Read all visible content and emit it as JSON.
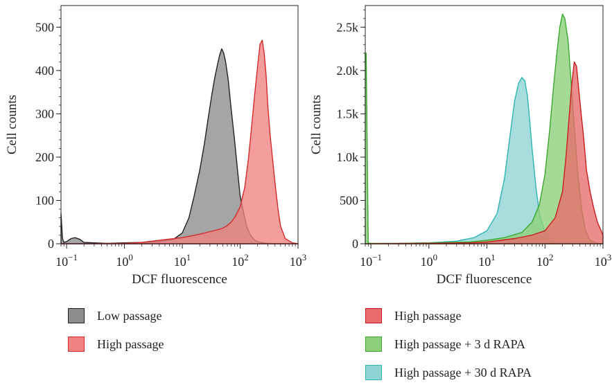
{
  "chart_data": [
    {
      "type": "area",
      "xlabel": "DCF fluorescence",
      "ylabel": "Cell counts",
      "x_scale": "log",
      "xlim": [
        0.08,
        1000
      ],
      "ylim": [
        0,
        550
      ],
      "yticks": [
        0,
        100,
        200,
        300,
        400,
        500
      ],
      "ytick_labels": [
        "0",
        "100",
        "200",
        "300",
        "400",
        "500"
      ],
      "xticks": [
        0.1,
        1,
        10,
        100,
        1000
      ],
      "xtick_labels": [
        {
          "base": "10",
          "exp": "−1"
        },
        {
          "base": "10",
          "exp": "0"
        },
        {
          "base": "10",
          "exp": "1"
        },
        {
          "base": "10",
          "exp": "2"
        },
        {
          "base": "10",
          "exp": "3"
        }
      ],
      "series": [
        {
          "name": "Low passage",
          "fill": "#8c8c8c",
          "stroke": "#222222",
          "x": [
            0.08,
            0.085,
            0.09,
            0.1,
            0.12,
            0.14,
            0.17,
            0.2,
            0.3,
            0.5,
            1,
            2,
            4,
            7,
            10,
            13,
            16,
            20,
            24,
            28,
            32,
            36,
            40,
            44,
            48,
            52,
            56,
            62,
            70,
            80,
            90,
            100,
            115,
            130,
            150,
            180,
            220,
            300,
            400,
            600,
            1000
          ],
          "y": [
            70,
            12,
            3,
            5,
            12,
            14,
            10,
            3,
            2,
            1,
            2,
            3,
            5,
            10,
            25,
            60,
            110,
            170,
            230,
            290,
            340,
            380,
            410,
            435,
            450,
            440,
            420,
            380,
            310,
            240,
            170,
            110,
            70,
            40,
            20,
            8,
            3,
            1,
            0,
            0,
            0
          ]
        },
        {
          "name": "High passage",
          "fill": "#f08282",
          "stroke": "#d42a2a",
          "x": [
            0.08,
            0.3,
            1,
            2,
            4,
            10,
            20,
            30,
            40,
            50,
            60,
            70,
            80,
            100,
            120,
            140,
            160,
            180,
            200,
            220,
            240,
            260,
            280,
            300,
            330,
            360,
            400,
            450,
            500,
            600,
            800,
            1000
          ],
          "y": [
            0,
            0,
            1,
            3,
            8,
            14,
            22,
            28,
            32,
            36,
            42,
            50,
            60,
            85,
            130,
            200,
            280,
            350,
            410,
            460,
            470,
            440,
            390,
            320,
            250,
            200,
            140,
            80,
            40,
            12,
            2,
            0
          ]
        }
      ],
      "legend": [
        "Low passage",
        "High passage"
      ]
    },
    {
      "type": "area",
      "xlabel": "DCF fluorescence",
      "ylabel": "Cell counts",
      "x_scale": "log",
      "xlim": [
        0.08,
        1000
      ],
      "ylim": [
        0,
        2750
      ],
      "yticks": [
        0,
        500,
        1000,
        1500,
        2000,
        2500
      ],
      "ytick_labels": [
        "0",
        "500",
        "1.0k",
        "1.5k",
        "2.0k",
        "2.5k"
      ],
      "xticks": [
        0.1,
        1,
        10,
        100,
        1000
      ],
      "xtick_labels": [
        {
          "base": "10",
          "exp": "−1"
        },
        {
          "base": "10",
          "exp": "0"
        },
        {
          "base": "10",
          "exp": "1"
        },
        {
          "base": "10",
          "exp": "2"
        },
        {
          "base": "10",
          "exp": "3"
        }
      ],
      "series": [
        {
          "name": "High passage + 30 d RAPA",
          "fill": "#8fd4d4",
          "stroke": "#2eb3b3",
          "x": [
            0.08,
            0.3,
            1,
            3,
            6,
            10,
            15,
            20,
            25,
            30,
            35,
            40,
            45,
            50,
            55,
            60,
            70,
            80,
            100,
            130,
            170,
            250,
            400,
            1000
          ],
          "y": [
            0,
            5,
            10,
            30,
            70,
            150,
            350,
            750,
            1250,
            1650,
            1850,
            1920,
            1880,
            1700,
            1400,
            1100,
            650,
            350,
            130,
            40,
            15,
            5,
            0,
            0
          ]
        },
        {
          "name": "High passage + 3 d RAPA",
          "fill": "#8ccf78",
          "stroke": "#3aa82e",
          "x": [
            0.08,
            0.083,
            0.09,
            0.1,
            0.3,
            1,
            5,
            10,
            20,
            40,
            60,
            80,
            100,
            120,
            140,
            160,
            180,
            200,
            220,
            250,
            280,
            320,
            370,
            430,
            500,
            600,
            800,
            1000
          ],
          "y": [
            2200,
            2200,
            10,
            5,
            5,
            10,
            20,
            40,
            70,
            130,
            250,
            450,
            800,
            1300,
            1800,
            2200,
            2500,
            2650,
            2600,
            2350,
            1900,
            1350,
            800,
            400,
            150,
            40,
            5,
            0
          ]
        },
        {
          "name": "High passage",
          "fill": "#e86c6c",
          "stroke": "#c81e1e",
          "x": [
            0.08,
            0.3,
            1,
            5,
            10,
            30,
            60,
            100,
            150,
            200,
            230,
            260,
            290,
            320,
            350,
            380,
            420,
            460,
            520,
            600,
            700,
            800,
            1000
          ],
          "y": [
            0,
            2,
            5,
            10,
            20,
            60,
            100,
            150,
            300,
            600,
            1000,
            1450,
            1850,
            2100,
            2050,
            1800,
            1500,
            1250,
            850,
            600,
            400,
            250,
            100
          ]
        }
      ],
      "legend": [
        "High passage",
        "High passage + 3 d RAPA",
        "High passage + 30 d RAPA"
      ]
    }
  ]
}
